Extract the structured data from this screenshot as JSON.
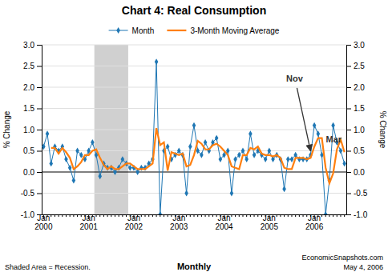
{
  "chart_data": {
    "type": "line",
    "title": "Chart 4: Real Consumption",
    "y_label": "% Change",
    "y2_label": "% Change",
    "footer_left": "Shaded Area = Recession.",
    "footer_center": "Monthly",
    "footer_right": "EconomicSnapshots.com",
    "footer_right2": "May 4, 2006",
    "legend": "top",
    "grid": true,
    "categories": [
      "Jan\n2000",
      null,
      null,
      null,
      null,
      null,
      null,
      null,
      null,
      null,
      null,
      null,
      "Jan\n2001",
      null,
      null,
      null,
      null,
      null,
      null,
      null,
      null,
      null,
      null,
      null,
      "Jan\n2002",
      null,
      null,
      null,
      null,
      null,
      null,
      null,
      null,
      null,
      null,
      null,
      "Jan\n2003",
      null,
      null,
      null,
      null,
      null,
      null,
      null,
      null,
      null,
      null,
      null,
      "Jan\n2004",
      null,
      null,
      null,
      null,
      null,
      null,
      null,
      null,
      null,
      null,
      null,
      "Jan\n2005",
      null,
      null,
      null,
      null,
      null,
      null,
      null,
      null,
      null,
      null,
      null,
      "Jan\n2006",
      null,
      null,
      null,
      null,
      null,
      null,
      null,
      null
    ],
    "series": [
      {
        "name": "Month",
        "marker": "diamond",
        "line_style": "solid",
        "values": [
          0.6,
          0.9,
          0.2,
          0.6,
          0.5,
          0.6,
          0.3,
          0.1,
          -0.2,
          0.5,
          0.4,
          0.3,
          0.5,
          0.7,
          0.4,
          -0.1,
          0.2,
          0.1,
          0.1,
          0.0,
          0.1,
          0.3,
          0.2,
          0.1,
          0.1,
          0.0,
          0.1,
          0.1,
          0.2,
          0.3,
          2.6,
          -1.0,
          0.5,
          0.6,
          0.3,
          0.4,
          0.5,
          0.4,
          -0.5,
          0.6,
          1.1,
          0.5,
          0.4,
          0.7,
          0.5,
          0.7,
          0.8,
          0.3,
          0.4,
          0.5,
          -0.5,
          0.3,
          0.4,
          0.5,
          0.3,
          0.9,
          0.4,
          0.5,
          0.4,
          0.3,
          0.5,
          0.3,
          0.4,
          0.3,
          -0.4,
          0.3,
          0.3,
          0.4,
          0.3,
          0.3,
          0.3,
          0.4,
          1.1,
          0.9,
          0.4,
          -1.0,
          -0.2,
          1.1,
          0.7,
          0.5,
          0.2
        ]
      },
      {
        "name": "3-Month Moving Average",
        "line_style": "solid",
        "values": [
          null,
          null,
          0.5666666666666667,
          0.5666666666666667,
          0.4333333333333333,
          0.5666666666666667,
          0.4666666666666667,
          0.3333333333333333,
          0.06666666666666667,
          0.13333333333333333,
          0.23333333333333334,
          0.4,
          0.4,
          0.5,
          0.5333333333333333,
          0.3333333333333333,
          0.16666666666666666,
          0.06666666666666667,
          0.13333333333333333,
          0.06666666666666667,
          0.06666666666666667,
          0.13333333333333333,
          0.2,
          0.2,
          0.13333333333333333,
          0.06666666666666667,
          0.06666666666666667,
          0.06666666666666667,
          0.13333333333333333,
          0.2,
          1.0333333333333334,
          0.6333333333333333,
          0.7,
          0.03333333333333333,
          0.4666666666666667,
          0.4333333333333333,
          0.4,
          0.4333333333333333,
          0.13333333333333333,
          0.16666666666666666,
          0.4,
          0.7333333333333333,
          0.6666666666666666,
          0.5333333333333333,
          0.5333333333333333,
          0.6333333333333333,
          0.6666666666666666,
          0.6,
          0.5,
          0.4,
          0.13333333333333333,
          0.1,
          0.06666666666666667,
          0.4,
          0.4,
          0.5666666666666667,
          0.5333333333333333,
          0.6,
          0.4333333333333333,
          0.4,
          0.4,
          0.3666666666666667,
          0.4,
          0.3333333333333333,
          0.1,
          0.06666666666666667,
          0.06666666666666667,
          0.3333333333333333,
          0.3333333333333333,
          0.3333333333333333,
          0.3,
          0.3333333333333333,
          0.6,
          0.8,
          0.8,
          0.1,
          -0.26666666666666666,
          -0.03333333333333333,
          0.5333333333333333,
          0.7666666666666667,
          0.4666666666666667
        ]
      }
    ],
    "recession": {
      "start_index": 14,
      "end_index": 22,
      "color": "#D0D0D0"
    },
    "annotations": [
      {
        "text": "Nov",
        "point": 71,
        "arrow": true
      },
      {
        "text": "Mar",
        "point": 74,
        "arrow": false
      }
    ],
    "ylim": [
      -1.0,
      3.0
    ],
    "yticks": [
      {
        "value": -1.0,
        "label": "-1.0"
      },
      -0.5,
      {
        "value": 0.0,
        "label": "0.0"
      },
      0.5,
      {
        "value": 1.0,
        "label": "1.0"
      },
      1.5,
      {
        "value": 2.0,
        "label": "2.0"
      },
      2.5,
      {
        "value": 3.0,
        "label": "3.0"
      }
    ],
    "y2lim": [
      -1.0,
      3.0
    ],
    "y2ticks": [
      {
        "value": -1.0,
        "label": "-1.0"
      },
      -0.5,
      {
        "value": 0.0,
        "label": "0.0"
      },
      0.5,
      {
        "value": 1.0,
        "label": "1.0"
      },
      1.5,
      {
        "value": 2.0,
        "label": "2.0"
      },
      2.5,
      {
        "value": 3.0,
        "label": "3.0"
      }
    ]
  }
}
